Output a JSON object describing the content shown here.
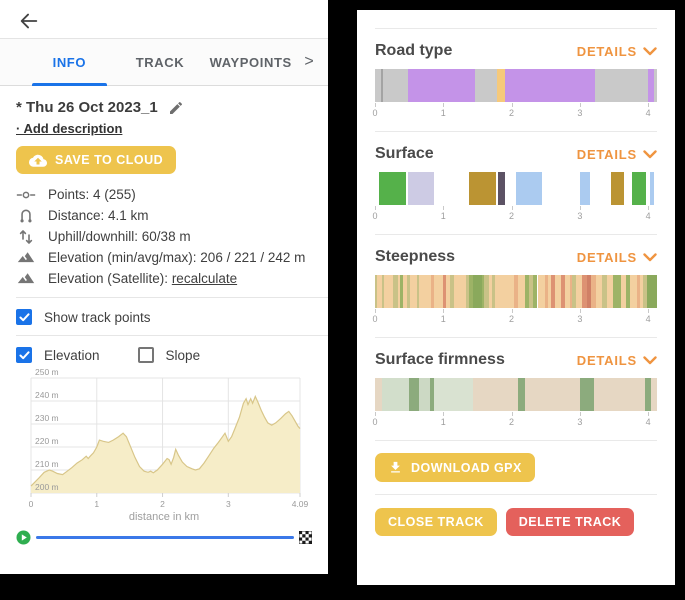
{
  "colors": {
    "accent_blue": "#1a73e8",
    "button_yellow": "#eec44d",
    "button_red": "#e4615c",
    "details_orange": "#ef9440",
    "slider_blue": "#3b78e8",
    "chart_fill": "#f6edc8",
    "chart_stroke": "#d8c689"
  },
  "left_panel": {
    "tabs": [
      {
        "label": "INFO",
        "active": true
      },
      {
        "label": "TRACK",
        "active": false
      },
      {
        "label": "WAYPOINTS",
        "active": false
      }
    ],
    "tabs_overflow": ">",
    "title": "* Thu 26 Oct 2023_1",
    "add_description": "· Add description",
    "save_button": "SAVE TO CLOUD",
    "stats": [
      {
        "icon": "points-icon",
        "text": "Points: 4 (255)"
      },
      {
        "icon": "distance-icon",
        "text": "Distance: 4.1 km"
      },
      {
        "icon": "updown-icon",
        "text": "Uphill/downhill: 60/38 m"
      },
      {
        "icon": "elevation-icon",
        "text": "Elevation (min/avg/max): 206 / 221 / 242 m"
      },
      {
        "icon": "elevation-icon",
        "text": "Elevation (Satellite): ",
        "link": "recalculate"
      }
    ],
    "checkbox_show_points": {
      "label": "Show track points",
      "checked": true
    },
    "checkbox_elevation": {
      "label": "Elevation",
      "checked": true
    },
    "checkbox_slope": {
      "label": "Slope",
      "checked": false
    }
  },
  "chart_data": {
    "type": "area",
    "title": "",
    "xlabel": "distance in km",
    "ylabel": "m",
    "ylim": [
      200,
      250
    ],
    "yticks": [
      200,
      210,
      220,
      230,
      240,
      250
    ],
    "ytick_labels": [
      "200 m",
      "210 m",
      "220 m",
      "230 m",
      "240 m",
      "250 m"
    ],
    "xticks": [
      0,
      1,
      2,
      3,
      4.09
    ],
    "xtick_labels": [
      "0",
      "1",
      "2",
      "3",
      "4.09"
    ],
    "xmax": 4.09,
    "points": [
      [
        0,
        203
      ],
      [
        0.05,
        204.5
      ],
      [
        0.12,
        206.5
      ],
      [
        0.2,
        209
      ],
      [
        0.28,
        210
      ],
      [
        0.33,
        209.5
      ],
      [
        0.4,
        208.5
      ],
      [
        0.48,
        208
      ],
      [
        0.55,
        209.5
      ],
      [
        0.62,
        211
      ],
      [
        0.7,
        213
      ],
      [
        0.78,
        214.5
      ],
      [
        0.84,
        216
      ],
      [
        0.87,
        215
      ],
      [
        0.9,
        216
      ],
      [
        0.95,
        217.5
      ],
      [
        1.0,
        220
      ],
      [
        1.04,
        223
      ],
      [
        1.1,
        222.5
      ],
      [
        1.18,
        222
      ],
      [
        1.25,
        223
      ],
      [
        1.33,
        224.5
      ],
      [
        1.4,
        226
      ],
      [
        1.45,
        224.5
      ],
      [
        1.5,
        221
      ],
      [
        1.58,
        215.5
      ],
      [
        1.65,
        211.5
      ],
      [
        1.72,
        209.5
      ],
      [
        1.78,
        209
      ],
      [
        1.82,
        209.5
      ],
      [
        1.86,
        208.8
      ],
      [
        1.92,
        210
      ],
      [
        2.0,
        212.5
      ],
      [
        2.07,
        215
      ],
      [
        2.1,
        214.5
      ],
      [
        2.13,
        212.5
      ],
      [
        2.17,
        215.5
      ],
      [
        2.2,
        219
      ],
      [
        2.24,
        216.5
      ],
      [
        2.3,
        213.5
      ],
      [
        2.37,
        211.5
      ],
      [
        2.45,
        210.5
      ],
      [
        2.5,
        210
      ],
      [
        2.56,
        210.5
      ],
      [
        2.63,
        213
      ],
      [
        2.7,
        216
      ],
      [
        2.78,
        219.5
      ],
      [
        2.85,
        222
      ],
      [
        2.9,
        224
      ],
      [
        2.95,
        226
      ],
      [
        3.0,
        222.5
      ],
      [
        3.05,
        224.5
      ],
      [
        3.1,
        228
      ],
      [
        3.17,
        233
      ],
      [
        3.23,
        239
      ],
      [
        3.27,
        241
      ],
      [
        3.3,
        238.5
      ],
      [
        3.34,
        241
      ],
      [
        3.37,
        239
      ],
      [
        3.41,
        242
      ],
      [
        3.45,
        239.5
      ],
      [
        3.5,
        236
      ],
      [
        3.55,
        233
      ],
      [
        3.6,
        230.5
      ],
      [
        3.66,
        229.5
      ],
      [
        3.72,
        230.5
      ],
      [
        3.8,
        232.5
      ],
      [
        3.87,
        234.5
      ],
      [
        3.92,
        235.5
      ],
      [
        3.97,
        233.5
      ],
      [
        4.02,
        231
      ],
      [
        4.06,
        229
      ],
      [
        4.09,
        228
      ]
    ]
  },
  "right_panel": {
    "details_label": "DETAILS",
    "axis_max": 4.13,
    "axis_ticks": [
      0,
      1,
      2,
      3,
      4
    ],
    "sections": [
      {
        "title": "Road type",
        "segments": [
          {
            "start": 0.0,
            "end": 0.09,
            "color": "#c9c9c9"
          },
          {
            "start": 0.09,
            "end": 0.11,
            "color": "#a3a3a3"
          },
          {
            "start": 0.11,
            "end": 0.49,
            "color": "#c9c9c9"
          },
          {
            "start": 0.49,
            "end": 1.47,
            "color": "#c493e8"
          },
          {
            "start": 1.47,
            "end": 1.78,
            "color": "#c9c9c9"
          },
          {
            "start": 1.78,
            "end": 1.9,
            "color": "#f6c97b"
          },
          {
            "start": 1.9,
            "end": 3.22,
            "color": "#c493e8"
          },
          {
            "start": 3.22,
            "end": 4.0,
            "color": "#c9c9c9"
          },
          {
            "start": 4.0,
            "end": 4.08,
            "color": "#c493e8"
          },
          {
            "start": 4.08,
            "end": 4.13,
            "color": "#c9c9c9"
          }
        ]
      },
      {
        "title": "Surface",
        "segments": [
          {
            "start": 0.06,
            "end": 0.45,
            "color": "#55b14a"
          },
          {
            "start": 0.49,
            "end": 0.87,
            "color": "#cdcbe4"
          },
          {
            "start": 1.37,
            "end": 1.77,
            "color": "#bb9433"
          },
          {
            "start": 1.8,
            "end": 1.91,
            "color": "#5c5264"
          },
          {
            "start": 2.06,
            "end": 2.44,
            "color": "#abcbf0"
          },
          {
            "start": 3.0,
            "end": 3.15,
            "color": "#abcbf0"
          },
          {
            "start": 3.45,
            "end": 3.64,
            "color": "#bb9433"
          },
          {
            "start": 3.77,
            "end": 3.97,
            "color": "#55b14a"
          },
          {
            "start": 4.03,
            "end": 4.08,
            "color": "#abcbf0"
          }
        ]
      },
      {
        "title": "Steepness",
        "segments": [
          {
            "start": 0.0,
            "end": 0.03,
            "color": "#c9c287"
          },
          {
            "start": 0.03,
            "end": 0.1,
            "color": "#f3d0a0"
          },
          {
            "start": 0.1,
            "end": 0.13,
            "color": "#c9c287"
          },
          {
            "start": 0.13,
            "end": 0.27,
            "color": "#f3d0a0"
          },
          {
            "start": 0.27,
            "end": 0.33,
            "color": "#c9c287"
          },
          {
            "start": 0.33,
            "end": 0.36,
            "color": "#f3d0a0"
          },
          {
            "start": 0.36,
            "end": 0.41,
            "color": "#9db366"
          },
          {
            "start": 0.41,
            "end": 0.47,
            "color": "#f3d0a0"
          },
          {
            "start": 0.47,
            "end": 0.51,
            "color": "#c9c287"
          },
          {
            "start": 0.51,
            "end": 0.62,
            "color": "#f3d0a0"
          },
          {
            "start": 0.62,
            "end": 0.65,
            "color": "#c9c287"
          },
          {
            "start": 0.65,
            "end": 0.82,
            "color": "#f3d0a0"
          },
          {
            "start": 0.82,
            "end": 0.86,
            "color": "#eab287"
          },
          {
            "start": 0.86,
            "end": 0.99,
            "color": "#f3d0a0"
          },
          {
            "start": 0.99,
            "end": 1.04,
            "color": "#dd9273"
          },
          {
            "start": 1.04,
            "end": 1.1,
            "color": "#f3d0a0"
          },
          {
            "start": 1.1,
            "end": 1.15,
            "color": "#c9c287"
          },
          {
            "start": 1.15,
            "end": 1.33,
            "color": "#f3d0a0"
          },
          {
            "start": 1.33,
            "end": 1.38,
            "color": "#c9c287"
          },
          {
            "start": 1.38,
            "end": 1.44,
            "color": "#9db366"
          },
          {
            "start": 1.44,
            "end": 1.56,
            "color": "#8aa95c"
          },
          {
            "start": 1.56,
            "end": 1.6,
            "color": "#9db366"
          },
          {
            "start": 1.6,
            "end": 1.67,
            "color": "#c9c287"
          },
          {
            "start": 1.67,
            "end": 1.72,
            "color": "#f3d0a0"
          },
          {
            "start": 1.72,
            "end": 1.76,
            "color": "#c9c287"
          },
          {
            "start": 1.76,
            "end": 2.04,
            "color": "#f3d0a0"
          },
          {
            "start": 2.04,
            "end": 2.09,
            "color": "#eab287"
          },
          {
            "start": 2.09,
            "end": 2.19,
            "color": "#f3d0a0"
          },
          {
            "start": 2.19,
            "end": 2.26,
            "color": "#9db366"
          },
          {
            "start": 2.26,
            "end": 2.31,
            "color": "#c9c287"
          },
          {
            "start": 2.31,
            "end": 2.38,
            "color": "#9db366"
          },
          {
            "start": 2.38,
            "end": 2.49,
            "color": "#f3d0a0"
          },
          {
            "start": 2.49,
            "end": 2.54,
            "color": "#eab287"
          },
          {
            "start": 2.54,
            "end": 2.58,
            "color": "#f3d0a0"
          },
          {
            "start": 2.58,
            "end": 2.63,
            "color": "#dd9273"
          },
          {
            "start": 2.63,
            "end": 2.73,
            "color": "#f3d0a0"
          },
          {
            "start": 2.73,
            "end": 2.78,
            "color": "#dd9273"
          },
          {
            "start": 2.78,
            "end": 2.85,
            "color": "#f3d0a0"
          },
          {
            "start": 2.85,
            "end": 2.88,
            "color": "#eab287"
          },
          {
            "start": 2.88,
            "end": 2.94,
            "color": "#c9c287"
          },
          {
            "start": 2.94,
            "end": 3.03,
            "color": "#f3d0a0"
          },
          {
            "start": 3.03,
            "end": 3.1,
            "color": "#dd9273"
          },
          {
            "start": 3.1,
            "end": 3.17,
            "color": "#d08066"
          },
          {
            "start": 3.17,
            "end": 3.23,
            "color": "#eab287"
          },
          {
            "start": 3.23,
            "end": 3.33,
            "color": "#f3d0a0"
          },
          {
            "start": 3.33,
            "end": 3.4,
            "color": "#c9c287"
          },
          {
            "start": 3.4,
            "end": 3.49,
            "color": "#f3d0a0"
          },
          {
            "start": 3.49,
            "end": 3.61,
            "color": "#9db366"
          },
          {
            "start": 3.61,
            "end": 3.68,
            "color": "#f3d0a0"
          },
          {
            "start": 3.68,
            "end": 3.73,
            "color": "#9db366"
          },
          {
            "start": 3.73,
            "end": 3.83,
            "color": "#f3d0a0"
          },
          {
            "start": 3.83,
            "end": 3.88,
            "color": "#eab287"
          },
          {
            "start": 3.88,
            "end": 3.93,
            "color": "#f3d0a0"
          },
          {
            "start": 3.93,
            "end": 3.98,
            "color": "#c9c287"
          },
          {
            "start": 3.98,
            "end": 4.13,
            "color": "#8aa95c"
          }
        ]
      },
      {
        "title": "Surface firmness",
        "segments": [
          {
            "start": 0.0,
            "end": 0.1,
            "color": "#e6d7c3"
          },
          {
            "start": 0.1,
            "end": 0.5,
            "color": "#d2decb"
          },
          {
            "start": 0.5,
            "end": 0.64,
            "color": "#8cab7d"
          },
          {
            "start": 0.64,
            "end": 0.8,
            "color": "#ccd9c4"
          },
          {
            "start": 0.8,
            "end": 0.86,
            "color": "#8cab7d"
          },
          {
            "start": 0.86,
            "end": 1.44,
            "color": "#d9e2d1"
          },
          {
            "start": 1.44,
            "end": 2.1,
            "color": "#e6d7c3"
          },
          {
            "start": 2.1,
            "end": 2.19,
            "color": "#8cab7d"
          },
          {
            "start": 2.19,
            "end": 3.0,
            "color": "#e6d7c3"
          },
          {
            "start": 3.0,
            "end": 3.21,
            "color": "#8cab7d"
          },
          {
            "start": 3.21,
            "end": 3.96,
            "color": "#e6d7c3"
          },
          {
            "start": 3.96,
            "end": 4.04,
            "color": "#8cab7d"
          },
          {
            "start": 4.04,
            "end": 4.13,
            "color": "#e6d7c3"
          }
        ]
      }
    ],
    "download_button": "DOWNLOAD GPX",
    "close_button": "CLOSE TRACK",
    "delete_button": "DELETE TRACK"
  }
}
